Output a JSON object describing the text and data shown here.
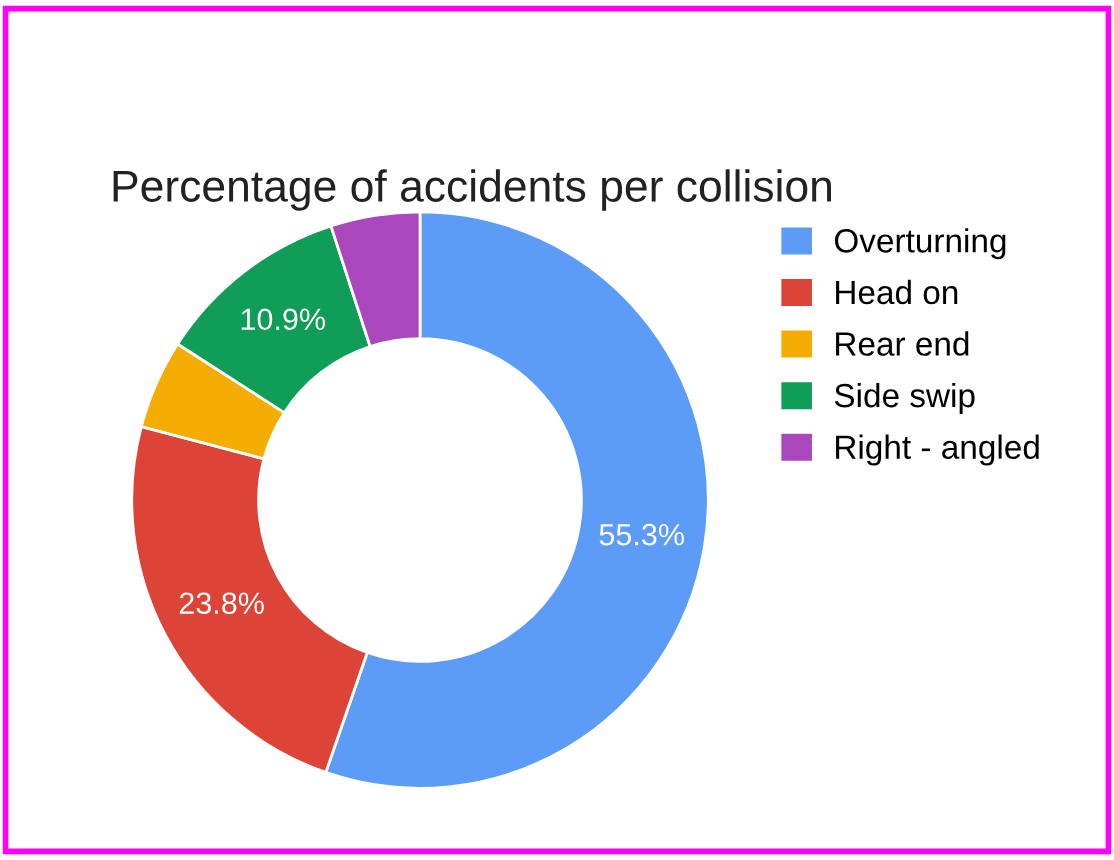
{
  "chart_data": {
    "type": "donut",
    "title": "Percentage of accidents per collision",
    "categories": [
      "Overturning",
      "Head on",
      "Rear end",
      "Side swip",
      "Right - angled"
    ],
    "values": [
      55.3,
      23.8,
      5.0,
      10.9,
      5.0
    ],
    "colors": [
      "#5c9cf7",
      "#dc4437",
      "#f4ac00",
      "#0f9d58",
      "#ab47bc"
    ],
    "value_labels": [
      "55.3%",
      "23.8%",
      null,
      "10.9%",
      null
    ],
    "legend": "right"
  }
}
